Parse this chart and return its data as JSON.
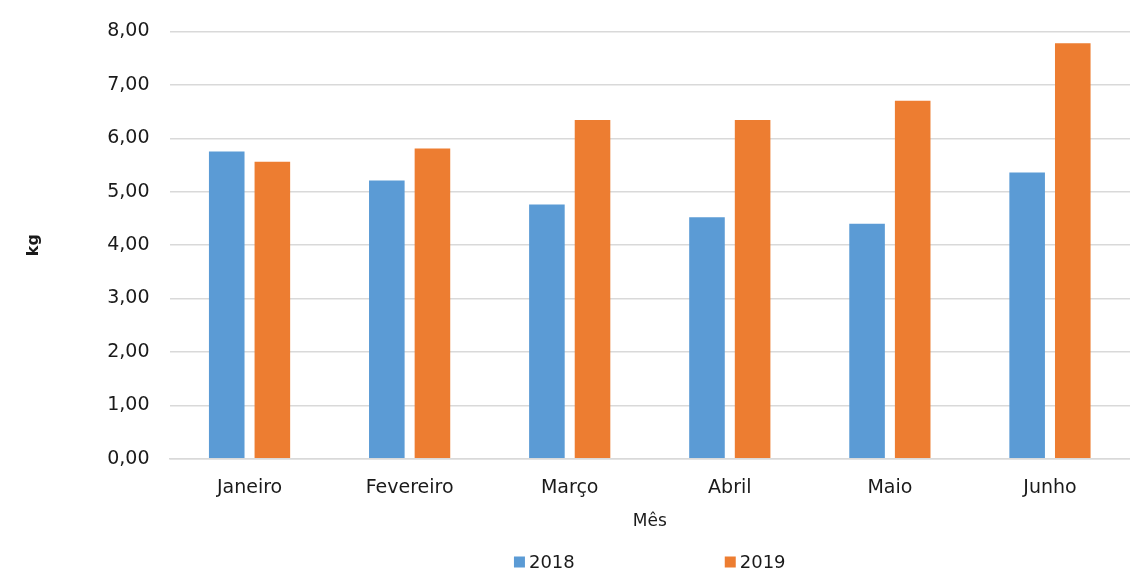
{
  "chart_data": {
    "type": "bar",
    "xlabel": "Mês",
    "ylabel": "kg",
    "categories": [
      "Janeiro",
      "Fevereiro",
      "Março",
      "Abril",
      "Maio",
      "Junho"
    ],
    "series": [
      {
        "name": "2018",
        "color": "#5b9bd5",
        "values": [
          5.75,
          5.21,
          4.76,
          4.52,
          4.4,
          5.36
        ]
      },
      {
        "name": "2019",
        "color": "#ed7d31",
        "values": [
          5.56,
          5.81,
          6.34,
          6.34,
          6.7,
          7.78
        ]
      }
    ],
    "ylim": [
      0,
      8
    ],
    "yticks": [
      {
        "value": 0,
        "label": "0,00"
      },
      {
        "value": 1,
        "label": "1,00"
      },
      {
        "value": 2,
        "label": "2,00"
      },
      {
        "value": 3,
        "label": "3,00"
      },
      {
        "value": 4,
        "label": "4,00"
      },
      {
        "value": 5,
        "label": "5,00"
      },
      {
        "value": 6,
        "label": "6,00"
      },
      {
        "value": 7,
        "label": "7,00"
      },
      {
        "value": 8,
        "label": "8,00"
      }
    ],
    "grid": "y",
    "legend": "bottom"
  }
}
